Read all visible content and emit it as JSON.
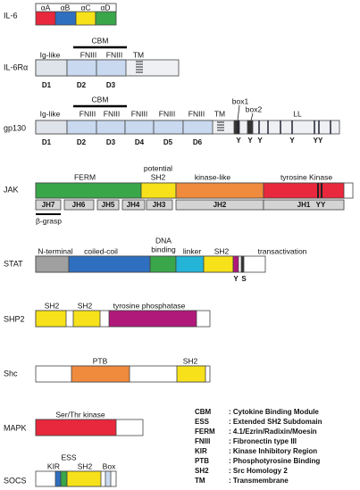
{
  "il6": {
    "name": "IL-6",
    "domains": [
      "αA",
      "αB",
      "αC",
      "αD"
    ]
  },
  "il6ra": {
    "name": "IL-6Rα",
    "cbm": "CBM",
    "labels": [
      "Ig-like",
      "FNIII",
      "FNIII",
      "TM"
    ],
    "domains": [
      "D1",
      "D2",
      "D3"
    ]
  },
  "gp130": {
    "name": "gp130",
    "cbm": "CBM",
    "labels": [
      "Ig-like",
      "FNIII",
      "FNIII",
      "FNIII",
      "FNIII",
      "FNIII",
      "TM",
      "box1",
      "box2",
      "LL"
    ],
    "domains": [
      "D1",
      "D2",
      "D3",
      "D4",
      "D5",
      "D6"
    ],
    "tyrosines": [
      "Y",
      "Y",
      "Y",
      "Y",
      "YY"
    ]
  },
  "jak": {
    "name": "JAK",
    "labels": [
      "FERM",
      "potential",
      "SH2",
      "kinase-like",
      "tyrosine Kinase"
    ],
    "jh": [
      "JH7",
      "JH6",
      "JH5",
      "JH4",
      "JH3",
      "JH2",
      "JH1"
    ],
    "tyrosines": [
      "YY"
    ],
    "beta_grasp": "β-grasp"
  },
  "stat": {
    "name": "STAT",
    "labels": [
      "N-terminal",
      "coiled-coil",
      "DNA",
      "binding",
      "linker",
      "SH2",
      "transactivation"
    ],
    "residues": [
      "Y",
      "S"
    ]
  },
  "shp2": {
    "name": "SHP2",
    "labels": [
      "SH2",
      "SH2",
      "tyrosine phosphatase"
    ]
  },
  "shc": {
    "name": "Shc",
    "labels": [
      "PTB",
      "SH2"
    ]
  },
  "mapk": {
    "name": "MAPK",
    "labels": [
      "Ser/Thr kinase"
    ]
  },
  "socs": {
    "name": "SOCS",
    "labels": [
      "KIR",
      "ESS",
      "SH2",
      "Box"
    ]
  },
  "legend": [
    {
      "abbr": "CBM",
      "definition": ": Cytokine Binding Module"
    },
    {
      "abbr": "ESS",
      "definition": ": Extended SH2 Subdomain"
    },
    {
      "abbr": "FERM",
      "definition": ": 4.1/Ezrin/Radixin/Moesin"
    },
    {
      "abbr": "FNIII",
      "definition": ": Fibronectin type III"
    },
    {
      "abbr": "KIR",
      "definition": ": Kinase Inhibitory Region"
    },
    {
      "abbr": "PTB",
      "definition": ": Phosphotyrosine Binding"
    },
    {
      "abbr": "SH2",
      "definition": ": Src Homology 2"
    },
    {
      "abbr": "TM",
      "definition": ": Transmembrane"
    }
  ]
}
